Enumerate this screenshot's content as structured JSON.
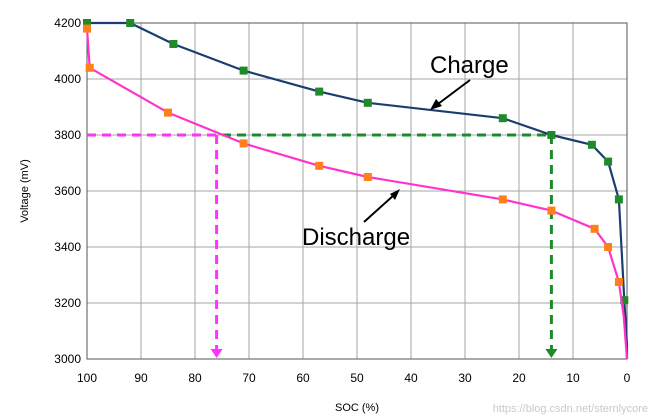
{
  "chart_data": {
    "type": "line",
    "title": "",
    "xlabel": "SOC (%)",
    "ylabel": "Voltage (mV)",
    "xlim": [
      100,
      0
    ],
    "ylim": [
      3000,
      4200
    ],
    "x_ticks": [
      100,
      90,
      80,
      70,
      60,
      50,
      40,
      30,
      20,
      10,
      0
    ],
    "y_ticks": [
      3000,
      3200,
      3400,
      3600,
      3800,
      4000,
      4200
    ],
    "grid": true,
    "series": [
      {
        "name": "Charge",
        "color": "#1a3f6f",
        "marker_color": "#1e8a2a",
        "x": [
          100,
          92,
          84,
          71,
          57,
          48,
          23,
          14,
          6.5,
          3.5,
          1.5,
          0.5
        ],
        "y": [
          4200,
          4200,
          4125,
          4030,
          3955,
          3915,
          3860,
          3800,
          3765,
          3705,
          3570,
          3210
        ]
      },
      {
        "name": "Discharge",
        "color": "#ff33cc",
        "marker_color": "#ff7f1a",
        "x": [
          100,
          99.5,
          85,
          71,
          57,
          48,
          23,
          14,
          6,
          3.5,
          1.5
        ],
        "y": [
          4180,
          4040,
          3880,
          3770,
          3690,
          3650,
          3570,
          3530,
          3465,
          3400,
          3275
        ]
      }
    ],
    "reference_lines": [
      {
        "name": "charge-3800",
        "color": "#1e8a2a",
        "level_mv": 3800,
        "soc_from": 100,
        "soc_at": 14
      },
      {
        "name": "discharge-3800",
        "color": "#ff33ff",
        "level_mv": 3800,
        "soc_from": 100,
        "soc_at": 76
      }
    ],
    "annotations": [
      {
        "text": "Charge",
        "points_to_series": "Charge"
      },
      {
        "text": "Discharge",
        "points_to_series": "Discharge"
      }
    ],
    "watermark": "https://blog.csdn.net/sternlycore"
  }
}
